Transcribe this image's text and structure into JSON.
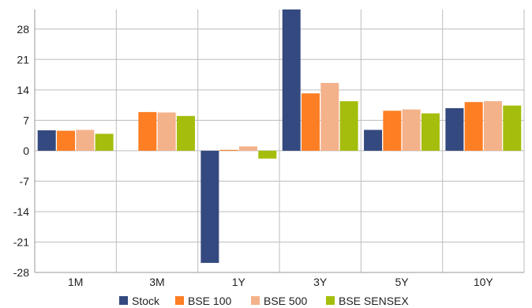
{
  "chart_data": {
    "type": "bar",
    "categories": [
      "1M",
      "3M",
      "1Y",
      "3Y",
      "5Y",
      "10Y"
    ],
    "series": [
      {
        "name": "Stock",
        "color": "#34497f",
        "values": [
          4.7,
          null,
          -25.8,
          33.5,
          4.8,
          9.8
        ]
      },
      {
        "name": "BSE 100",
        "color": "#fd7e23",
        "values": [
          4.6,
          8.9,
          0.2,
          13.2,
          9.2,
          11.2
        ]
      },
      {
        "name": "BSE 500",
        "color": "#f4b28a",
        "values": [
          4.8,
          8.8,
          1.0,
          15.6,
          9.5,
          11.4
        ]
      },
      {
        "name": "BSE SENSEX",
        "color": "#a5bd0d",
        "values": [
          3.9,
          8.0,
          -1.8,
          11.4,
          8.6,
          10.4
        ]
      }
    ],
    "y_ticks": [
      "28",
      "21",
      "14",
      "7",
      "0",
      "-7",
      "-14",
      "-21",
      "-28"
    ],
    "ylim": [
      -28,
      32.5
    ],
    "grid": true,
    "legend_position": "bottom"
  }
}
